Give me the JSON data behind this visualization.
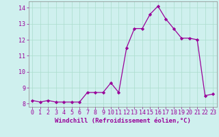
{
  "x": [
    0,
    1,
    2,
    3,
    4,
    5,
    6,
    7,
    8,
    9,
    10,
    11,
    12,
    13,
    14,
    15,
    16,
    17,
    18,
    19,
    20,
    21,
    22,
    23
  ],
  "y": [
    8.2,
    8.1,
    8.2,
    8.1,
    8.1,
    8.1,
    8.1,
    8.7,
    8.7,
    8.7,
    9.3,
    8.7,
    11.5,
    12.7,
    12.7,
    13.6,
    14.1,
    13.3,
    12.7,
    12.1,
    12.1,
    12.0,
    8.5,
    8.6
  ],
  "line_color": "#990099",
  "marker": "D",
  "marker_size": 2.2,
  "bg_color": "#cff0ee",
  "grid_color": "#aaddcc",
  "xlabel": "Windchill (Refroidissement éolien,°C)",
  "xlabel_color": "#990099",
  "xlabel_fontsize": 6.5,
  "tick_color": "#990099",
  "tick_fontsize": 6.0,
  "ylim": [
    7.8,
    14.4
  ],
  "xlim": [
    -0.5,
    23.5
  ],
  "yticks": [
    8,
    9,
    10,
    11,
    12,
    13,
    14
  ],
  "xticks": [
    0,
    1,
    2,
    3,
    4,
    5,
    6,
    7,
    8,
    9,
    10,
    11,
    12,
    13,
    14,
    15,
    16,
    17,
    18,
    19,
    20,
    21,
    22,
    23
  ]
}
